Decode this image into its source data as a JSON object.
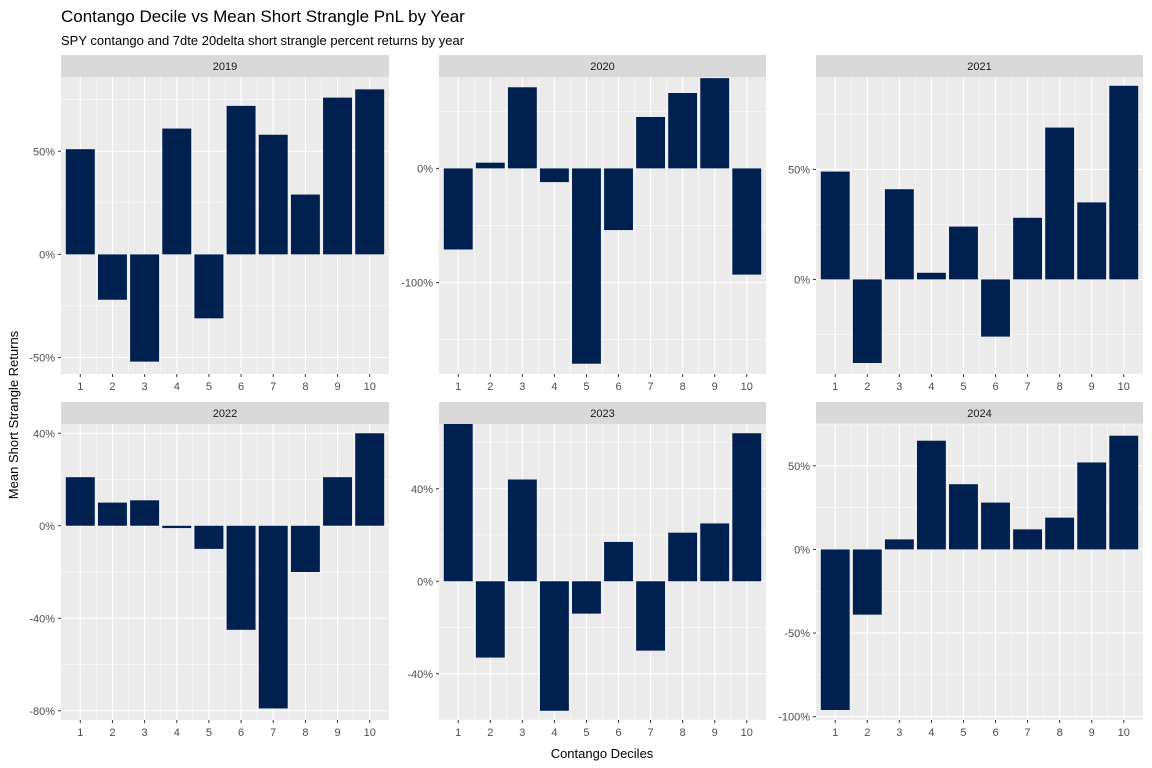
{
  "chart_data": {
    "type": "bar",
    "title": "Contango Decile vs Mean Short Strangle PnL by Year",
    "subtitle": "SPY contango and 7dte 20delta short strangle percent returns by year",
    "xlabel": "Contango Deciles",
    "ylabel": "Mean Short Strangle Returns",
    "bar_color": "#002050",
    "panel_background": "#ebebeb",
    "strip_background": "#d9d9d9",
    "grid": true,
    "categories": [
      "1",
      "2",
      "3",
      "4",
      "5",
      "6",
      "7",
      "8",
      "9",
      "10"
    ],
    "panels": [
      {
        "label": "2019",
        "ylim": [
          -58,
          86
        ],
        "yticks": [
          -50,
          0,
          50
        ],
        "ytick_labels": [
          "-50%",
          "0%",
          "50%"
        ],
        "values": [
          51,
          -22,
          -52,
          61,
          -31,
          72,
          58,
          29,
          76,
          80
        ]
      },
      {
        "label": "2020",
        "ylim": [
          -180,
          80
        ],
        "yticks": [
          -100,
          0
        ],
        "ytick_labels": [
          "-100%",
          "0%"
        ],
        "values": [
          -71,
          5,
          71,
          -12,
          -171,
          -54,
          45,
          66,
          79,
          -93
        ]
      },
      {
        "label": "2021",
        "ylim": [
          -43,
          92
        ],
        "yticks": [
          0,
          50
        ],
        "ytick_labels": [
          "0%",
          "50%"
        ],
        "values": [
          49,
          -38,
          41,
          3,
          24,
          -26,
          28,
          69,
          35,
          88
        ]
      },
      {
        "label": "2022",
        "ylim": [
          -84,
          44
        ],
        "yticks": [
          -80,
          -40,
          0,
          40
        ],
        "ytick_labels": [
          "-80%",
          "-40%",
          "0%",
          "40%"
        ],
        "values": [
          21,
          10,
          11,
          -1,
          -10,
          -45,
          -79,
          -20,
          21,
          40
        ]
      },
      {
        "label": "2023",
        "ylim": [
          -60,
          68
        ],
        "yticks": [
          -40,
          0,
          40
        ],
        "ytick_labels": [
          "-40%",
          "0%",
          "40%"
        ],
        "values": [
          68,
          -33,
          44,
          -56,
          -14,
          17,
          -30,
          21,
          25,
          64
        ]
      },
      {
        "label": "2024",
        "ylim": [
          -102,
          75
        ],
        "yticks": [
          -100,
          -50,
          0,
          50
        ],
        "ytick_labels": [
          "-100%",
          "-50%",
          "0%",
          "50%"
        ],
        "values": [
          -96,
          -39,
          6,
          65,
          39,
          28,
          12,
          19,
          52,
          68
        ]
      }
    ]
  }
}
